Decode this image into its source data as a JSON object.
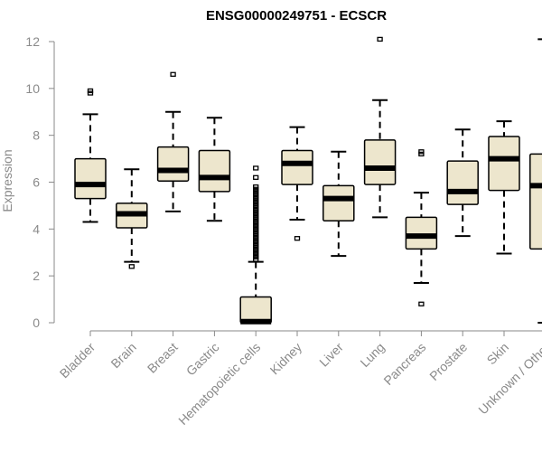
{
  "chart_data": {
    "type": "box",
    "title": "ENSG00000249751 - ECSCR",
    "ylabel": "Expression",
    "xlabel": "",
    "ylim": [
      0,
      12
    ],
    "yticks": [
      0,
      2,
      4,
      6,
      8,
      10,
      12
    ],
    "grid": false,
    "colors": {
      "box_fill": "#ede6cd",
      "box_stroke": "#000000",
      "axis": "#8a8a8a"
    },
    "categories": [
      "Bladder",
      "Brain",
      "Breast",
      "Gastric",
      "Hematopoietic cells",
      "Kidney",
      "Liver",
      "Lung",
      "Pancreas",
      "Prostate",
      "Skin",
      "Unknown / Other"
    ],
    "boxes": [
      {
        "name": "Bladder",
        "whisker_low": 4.3,
        "q1": 5.3,
        "median": 5.9,
        "q3": 7.0,
        "whisker_high": 8.9,
        "outliers": [
          9.8,
          9.9
        ]
      },
      {
        "name": "Brain",
        "whisker_low": 2.6,
        "q1": 4.05,
        "median": 4.65,
        "q3": 5.1,
        "whisker_high": 6.55,
        "outliers": [
          2.4
        ]
      },
      {
        "name": "Breast",
        "whisker_low": 4.75,
        "q1": 6.05,
        "median": 6.5,
        "q3": 7.5,
        "whisker_high": 9.0,
        "outliers": [
          10.6
        ]
      },
      {
        "name": "Gastric",
        "whisker_low": 4.35,
        "q1": 5.6,
        "median": 6.2,
        "q3": 7.35,
        "whisker_high": 8.75,
        "outliers": []
      },
      {
        "name": "Hematopoietic cells",
        "whisker_low": 0.0,
        "q1": 0.0,
        "median": 0.05,
        "q3": 1.1,
        "whisker_high": 2.6,
        "outliers": [
          2.7,
          2.8,
          2.9,
          3.0,
          3.1,
          3.2,
          3.3,
          3.4,
          3.5,
          3.6,
          3.7,
          3.8,
          3.9,
          4.0,
          4.1,
          4.2,
          4.3,
          4.4,
          4.5,
          4.6,
          4.7,
          4.8,
          4.9,
          5.0,
          5.1,
          5.2,
          5.3,
          5.4,
          5.5,
          5.6,
          5.7,
          5.8,
          6.2,
          6.6
        ]
      },
      {
        "name": "Kidney",
        "whisker_low": 4.4,
        "q1": 5.9,
        "median": 6.8,
        "q3": 7.35,
        "whisker_high": 8.35,
        "outliers": [
          3.6
        ]
      },
      {
        "name": "Liver",
        "whisker_low": 2.85,
        "q1": 4.35,
        "median": 5.3,
        "q3": 5.85,
        "whisker_high": 7.3,
        "outliers": []
      },
      {
        "name": "Lung",
        "whisker_low": 4.5,
        "q1": 5.9,
        "median": 6.6,
        "q3": 7.8,
        "whisker_high": 9.5,
        "outliers": [
          12.1
        ]
      },
      {
        "name": "Pancreas",
        "whisker_low": 1.7,
        "q1": 3.15,
        "median": 3.7,
        "q3": 4.5,
        "whisker_high": 5.55,
        "outliers": [
          0.8,
          7.2,
          7.3
        ]
      },
      {
        "name": "Prostate",
        "whisker_low": 3.7,
        "q1": 5.05,
        "median": 5.6,
        "q3": 6.9,
        "whisker_high": 8.25,
        "outliers": []
      },
      {
        "name": "Skin",
        "whisker_low": 2.95,
        "q1": 5.65,
        "median": 7.0,
        "q3": 7.95,
        "whisker_high": 8.6,
        "outliers": []
      },
      {
        "name": "Unknown / Other",
        "whisker_low": 0.0,
        "q1": 3.15,
        "median": 5.85,
        "q3": 7.2,
        "whisker_high": 12.1,
        "outliers": []
      }
    ]
  }
}
